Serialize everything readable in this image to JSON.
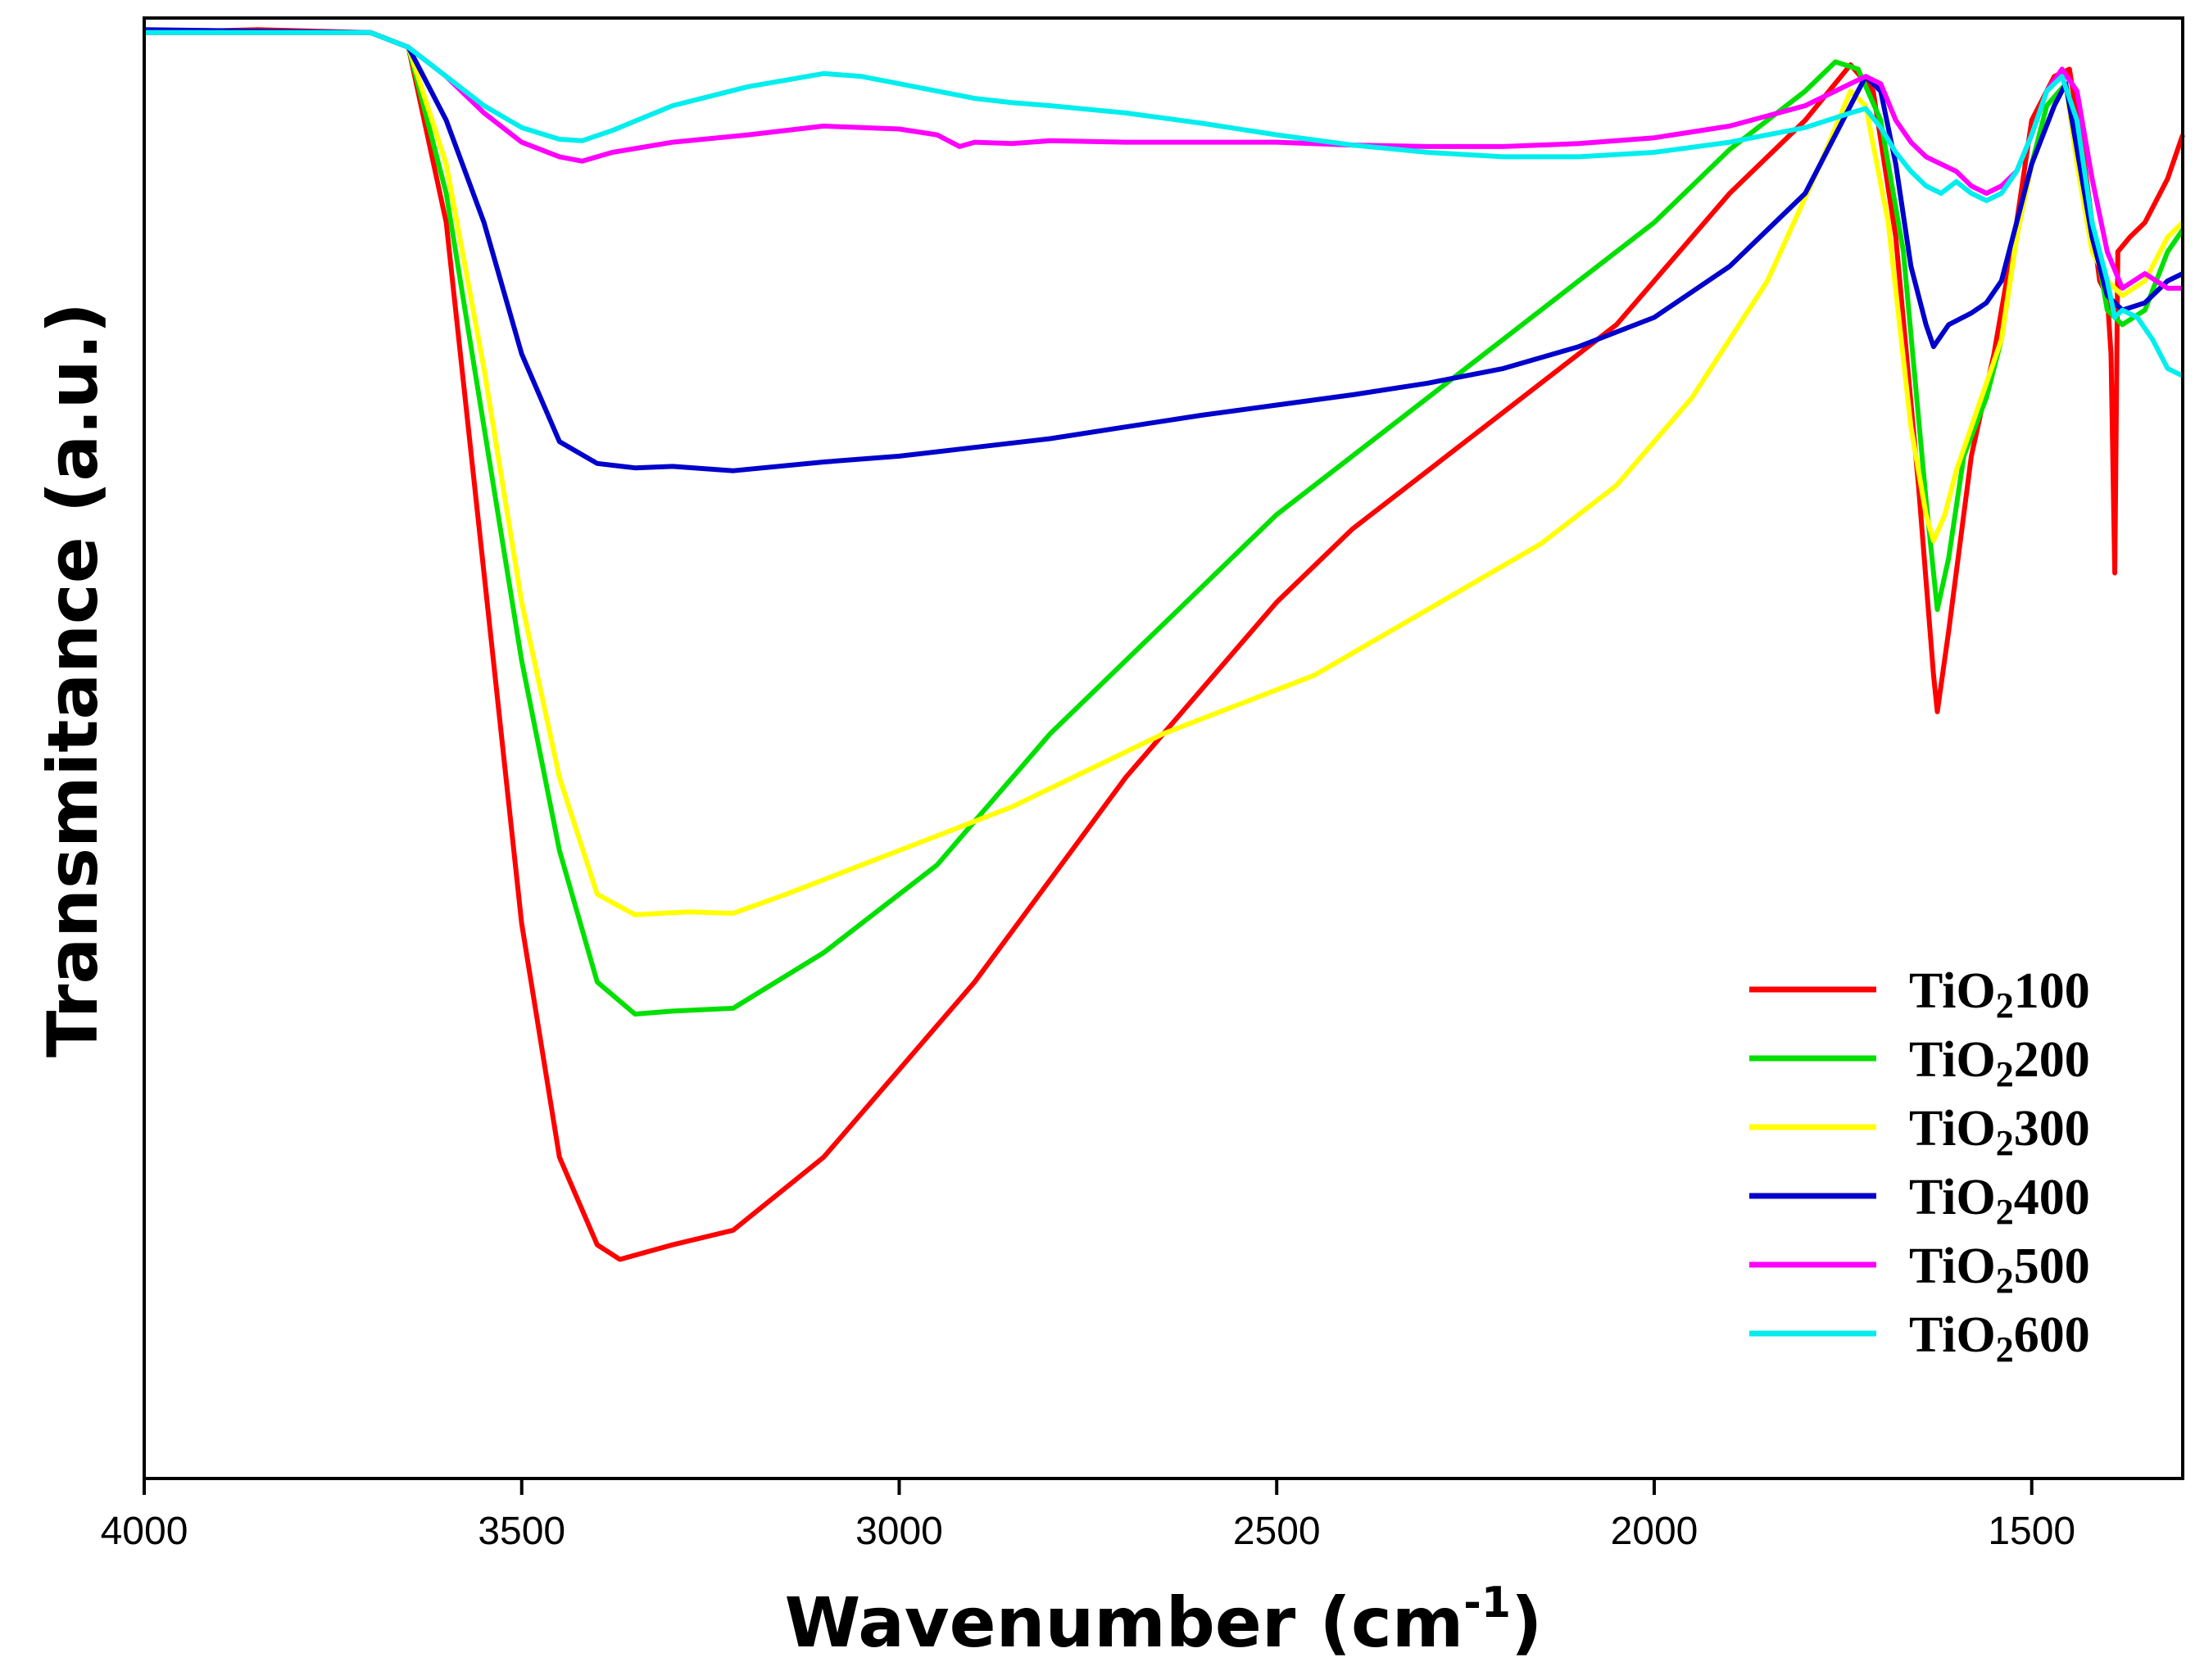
{
  "chart_data": {
    "type": "line",
    "title": "",
    "xlabel": "Wavenumber (cm",
    "xlabel_sup": "-1",
    "xlabel_close": ")",
    "ylabel": "Transmitance (a.u.)",
    "xlim": [
      4000,
      1300
    ],
    "ylim": [
      0,
      100
    ],
    "xticks": [
      4000,
      3500,
      3000,
      2500,
      2000,
      1500
    ],
    "xtick_labels": [
      "4000",
      "3500",
      "3000",
      "2500",
      "2000",
      "1500"
    ],
    "legend_position": "bottom-right",
    "series": [
      {
        "name": "TiO2100",
        "label_prefix": "TiO",
        "label_sub": "2",
        "label_suffix": "100",
        "color": "#ff0000",
        "points": [
          [
            4000,
            99
          ],
          [
            3850,
            99.2
          ],
          [
            3700,
            99
          ],
          [
            3650,
            98
          ],
          [
            3600,
            86
          ],
          [
            3550,
            62
          ],
          [
            3500,
            38
          ],
          [
            3450,
            22
          ],
          [
            3400,
            16
          ],
          [
            3370,
            15
          ],
          [
            3300,
            16
          ],
          [
            3220,
            17
          ],
          [
            3100,
            22
          ],
          [
            3000,
            28
          ],
          [
            2900,
            34
          ],
          [
            2800,
            41
          ],
          [
            2700,
            48
          ],
          [
            2600,
            54
          ],
          [
            2500,
            60
          ],
          [
            2400,
            65
          ],
          [
            2300,
            69
          ],
          [
            2200,
            73
          ],
          [
            2100,
            77
          ],
          [
            2050,
            79
          ],
          [
            2000,
            82
          ],
          [
            1900,
            88
          ],
          [
            1800,
            93
          ],
          [
            1740,
            96.8
          ],
          [
            1710,
            95
          ],
          [
            1680,
            85
          ],
          [
            1650,
            68
          ],
          [
            1630,
            55
          ],
          [
            1625,
            52.5
          ],
          [
            1610,
            58
          ],
          [
            1580,
            70
          ],
          [
            1550,
            77
          ],
          [
            1520,
            86
          ],
          [
            1500,
            93
          ],
          [
            1470,
            96
          ],
          [
            1450,
            96.5
          ],
          [
            1430,
            90
          ],
          [
            1410,
            82
          ],
          [
            1400,
            81
          ],
          [
            1395,
            77
          ],
          [
            1390,
            62
          ],
          [
            1386,
            84
          ],
          [
            1370,
            85
          ],
          [
            1350,
            86
          ],
          [
            1320,
            89
          ],
          [
            1300,
            92
          ]
        ]
      },
      {
        "name": "TiO2200",
        "label_prefix": "TiO",
        "label_sub": "2",
        "label_suffix": "200",
        "color": "#00e000",
        "points": [
          [
            4000,
            99
          ],
          [
            3700,
            99
          ],
          [
            3650,
            98
          ],
          [
            3600,
            88
          ],
          [
            3550,
            72
          ],
          [
            3500,
            56
          ],
          [
            3450,
            43
          ],
          [
            3400,
            34
          ],
          [
            3350,
            31.8
          ],
          [
            3300,
            32
          ],
          [
            3220,
            32.2
          ],
          [
            3100,
            36
          ],
          [
            3000,
            40
          ],
          [
            2950,
            42
          ],
          [
            2900,
            45
          ],
          [
            2850,
            48
          ],
          [
            2800,
            51
          ],
          [
            2700,
            56
          ],
          [
            2600,
            61
          ],
          [
            2500,
            66
          ],
          [
            2400,
            70
          ],
          [
            2300,
            74
          ],
          [
            2200,
            78
          ],
          [
            2100,
            82
          ],
          [
            2000,
            86
          ],
          [
            1900,
            91
          ],
          [
            1800,
            95
          ],
          [
            1760,
            97
          ],
          [
            1730,
            96.5
          ],
          [
            1700,
            93
          ],
          [
            1670,
            84
          ],
          [
            1640,
            67
          ],
          [
            1625,
            59.5
          ],
          [
            1610,
            63
          ],
          [
            1590,
            70
          ],
          [
            1560,
            74
          ],
          [
            1540,
            78
          ],
          [
            1520,
            85
          ],
          [
            1500,
            90
          ],
          [
            1480,
            94
          ],
          [
            1455,
            95.5
          ],
          [
            1440,
            92
          ],
          [
            1420,
            86
          ],
          [
            1400,
            80
          ],
          [
            1380,
            79
          ],
          [
            1350,
            80
          ],
          [
            1320,
            84
          ],
          [
            1300,
            85.5
          ]
        ]
      },
      {
        "name": "TiO2300",
        "label_prefix": "TiO",
        "label_sub": "2",
        "label_suffix": "300",
        "color": "#ffff00",
        "points": [
          [
            4000,
            99
          ],
          [
            3700,
            99
          ],
          [
            3650,
            98
          ],
          [
            3600,
            90
          ],
          [
            3550,
            76
          ],
          [
            3500,
            60
          ],
          [
            3450,
            48
          ],
          [
            3400,
            40
          ],
          [
            3350,
            38.6
          ],
          [
            3280,
            38.8
          ],
          [
            3220,
            38.7
          ],
          [
            3150,
            40
          ],
          [
            3050,
            42
          ],
          [
            2950,
            44
          ],
          [
            2850,
            46
          ],
          [
            2750,
            48.5
          ],
          [
            2650,
            51
          ],
          [
            2550,
            53
          ],
          [
            2450,
            55
          ],
          [
            2350,
            58
          ],
          [
            2250,
            61
          ],
          [
            2150,
            64
          ],
          [
            2050,
            68
          ],
          [
            1950,
            74
          ],
          [
            1850,
            82
          ],
          [
            1780,
            90
          ],
          [
            1740,
            95
          ],
          [
            1720,
            94
          ],
          [
            1690,
            86
          ],
          [
            1660,
            72
          ],
          [
            1640,
            66
          ],
          [
            1630,
            64.2
          ],
          [
            1615,
            66
          ],
          [
            1600,
            69
          ],
          [
            1580,
            72
          ],
          [
            1560,
            75
          ],
          [
            1540,
            78
          ],
          [
            1520,
            85
          ],
          [
            1500,
            90
          ],
          [
            1470,
            94
          ],
          [
            1455,
            95.5
          ],
          [
            1440,
            90
          ],
          [
            1420,
            84
          ],
          [
            1400,
            82
          ],
          [
            1380,
            81
          ],
          [
            1350,
            82
          ],
          [
            1320,
            85
          ],
          [
            1300,
            86
          ]
        ]
      },
      {
        "name": "TiO2400",
        "label_prefix": "TiO",
        "label_sub": "2",
        "label_suffix": "400",
        "color": "#0000cc",
        "points": [
          [
            4000,
            99.2
          ],
          [
            3700,
            99
          ],
          [
            3650,
            98
          ],
          [
            3600,
            93
          ],
          [
            3550,
            86
          ],
          [
            3500,
            77
          ],
          [
            3450,
            71
          ],
          [
            3400,
            69.5
          ],
          [
            3350,
            69.2
          ],
          [
            3300,
            69.3
          ],
          [
            3220,
            69
          ],
          [
            3100,
            69.6
          ],
          [
            3000,
            70
          ],
          [
            2900,
            70.6
          ],
          [
            2800,
            71.2
          ],
          [
            2700,
            72
          ],
          [
            2600,
            72.8
          ],
          [
            2500,
            73.5
          ],
          [
            2400,
            74.2
          ],
          [
            2300,
            75
          ],
          [
            2200,
            76
          ],
          [
            2100,
            77.5
          ],
          [
            2000,
            79.5
          ],
          [
            1900,
            83
          ],
          [
            1800,
            88
          ],
          [
            1740,
            94
          ],
          [
            1720,
            96
          ],
          [
            1700,
            95
          ],
          [
            1680,
            90
          ],
          [
            1660,
            83
          ],
          [
            1640,
            79
          ],
          [
            1630,
            77.5
          ],
          [
            1610,
            79
          ],
          [
            1580,
            79.8
          ],
          [
            1560,
            80.5
          ],
          [
            1540,
            82
          ],
          [
            1520,
            86
          ],
          [
            1500,
            90
          ],
          [
            1470,
            94
          ],
          [
            1455,
            95.5
          ],
          [
            1440,
            91
          ],
          [
            1420,
            85
          ],
          [
            1400,
            81
          ],
          [
            1380,
            80
          ],
          [
            1350,
            80.5
          ],
          [
            1320,
            82
          ],
          [
            1300,
            82.5
          ]
        ]
      },
      {
        "name": "TiO2500",
        "label_prefix": "TiO",
        "label_sub": "2",
        "label_suffix": "500",
        "color": "#ff00ff",
        "points": [
          [
            4000,
            99
          ],
          [
            3700,
            99
          ],
          [
            3650,
            98
          ],
          [
            3600,
            96
          ],
          [
            3550,
            93.5
          ],
          [
            3500,
            91.5
          ],
          [
            3450,
            90.5
          ],
          [
            3420,
            90.2
          ],
          [
            3380,
            90.8
          ],
          [
            3300,
            91.5
          ],
          [
            3200,
            92
          ],
          [
            3100,
            92.6
          ],
          [
            3000,
            92.4
          ],
          [
            2950,
            92
          ],
          [
            2920,
            91.2
          ],
          [
            2900,
            91.5
          ],
          [
            2850,
            91.4
          ],
          [
            2800,
            91.6
          ],
          [
            2700,
            91.5
          ],
          [
            2600,
            91.5
          ],
          [
            2500,
            91.5
          ],
          [
            2400,
            91.3
          ],
          [
            2300,
            91.2
          ],
          [
            2200,
            91.2
          ],
          [
            2100,
            91.4
          ],
          [
            2000,
            91.8
          ],
          [
            1900,
            92.6
          ],
          [
            1800,
            94
          ],
          [
            1740,
            95.5
          ],
          [
            1720,
            96
          ],
          [
            1700,
            95.5
          ],
          [
            1680,
            93
          ],
          [
            1660,
            91.5
          ],
          [
            1640,
            90.5
          ],
          [
            1620,
            90
          ],
          [
            1600,
            89.5
          ],
          [
            1580,
            88.5
          ],
          [
            1560,
            88
          ],
          [
            1540,
            88.5
          ],
          [
            1520,
            89.5
          ],
          [
            1500,
            92
          ],
          [
            1480,
            95
          ],
          [
            1460,
            96.5
          ],
          [
            1440,
            95
          ],
          [
            1420,
            89
          ],
          [
            1400,
            84
          ],
          [
            1380,
            81.5
          ],
          [
            1350,
            82.5
          ],
          [
            1320,
            81.5
          ],
          [
            1300,
            81.5
          ]
        ]
      },
      {
        "name": "TiO2600",
        "label_prefix": "TiO",
        "label_sub": "2",
        "label_suffix": "600",
        "color": "#00eeee",
        "points": [
          [
            4000,
            99
          ],
          [
            3700,
            99
          ],
          [
            3650,
            98
          ],
          [
            3600,
            96
          ],
          [
            3550,
            94
          ],
          [
            3500,
            92.5
          ],
          [
            3450,
            91.7
          ],
          [
            3420,
            91.6
          ],
          [
            3380,
            92.3
          ],
          [
            3300,
            94
          ],
          [
            3200,
            95.3
          ],
          [
            3100,
            96.2
          ],
          [
            3050,
            96
          ],
          [
            3000,
            95.5
          ],
          [
            2950,
            95
          ],
          [
            2900,
            94.5
          ],
          [
            2850,
            94.2
          ],
          [
            2800,
            94
          ],
          [
            2700,
            93.5
          ],
          [
            2600,
            92.8
          ],
          [
            2500,
            92
          ],
          [
            2400,
            91.3
          ],
          [
            2300,
            90.8
          ],
          [
            2200,
            90.5
          ],
          [
            2100,
            90.5
          ],
          [
            2000,
            90.8
          ],
          [
            1900,
            91.5
          ],
          [
            1800,
            92.5
          ],
          [
            1740,
            93.5
          ],
          [
            1720,
            93.8
          ],
          [
            1700,
            92.5
          ],
          [
            1680,
            90.8
          ],
          [
            1660,
            89.5
          ],
          [
            1640,
            88.5
          ],
          [
            1620,
            88
          ],
          [
            1600,
            88.8
          ],
          [
            1580,
            88
          ],
          [
            1560,
            87.5
          ],
          [
            1540,
            88
          ],
          [
            1520,
            89.5
          ],
          [
            1500,
            92
          ],
          [
            1480,
            95
          ],
          [
            1460,
            96
          ],
          [
            1440,
            93
          ],
          [
            1420,
            86
          ],
          [
            1400,
            82
          ],
          [
            1390,
            79.5
          ],
          [
            1380,
            80
          ],
          [
            1360,
            79.5
          ],
          [
            1340,
            78
          ],
          [
            1320,
            76
          ],
          [
            1300,
            75.5
          ]
        ]
      }
    ]
  }
}
